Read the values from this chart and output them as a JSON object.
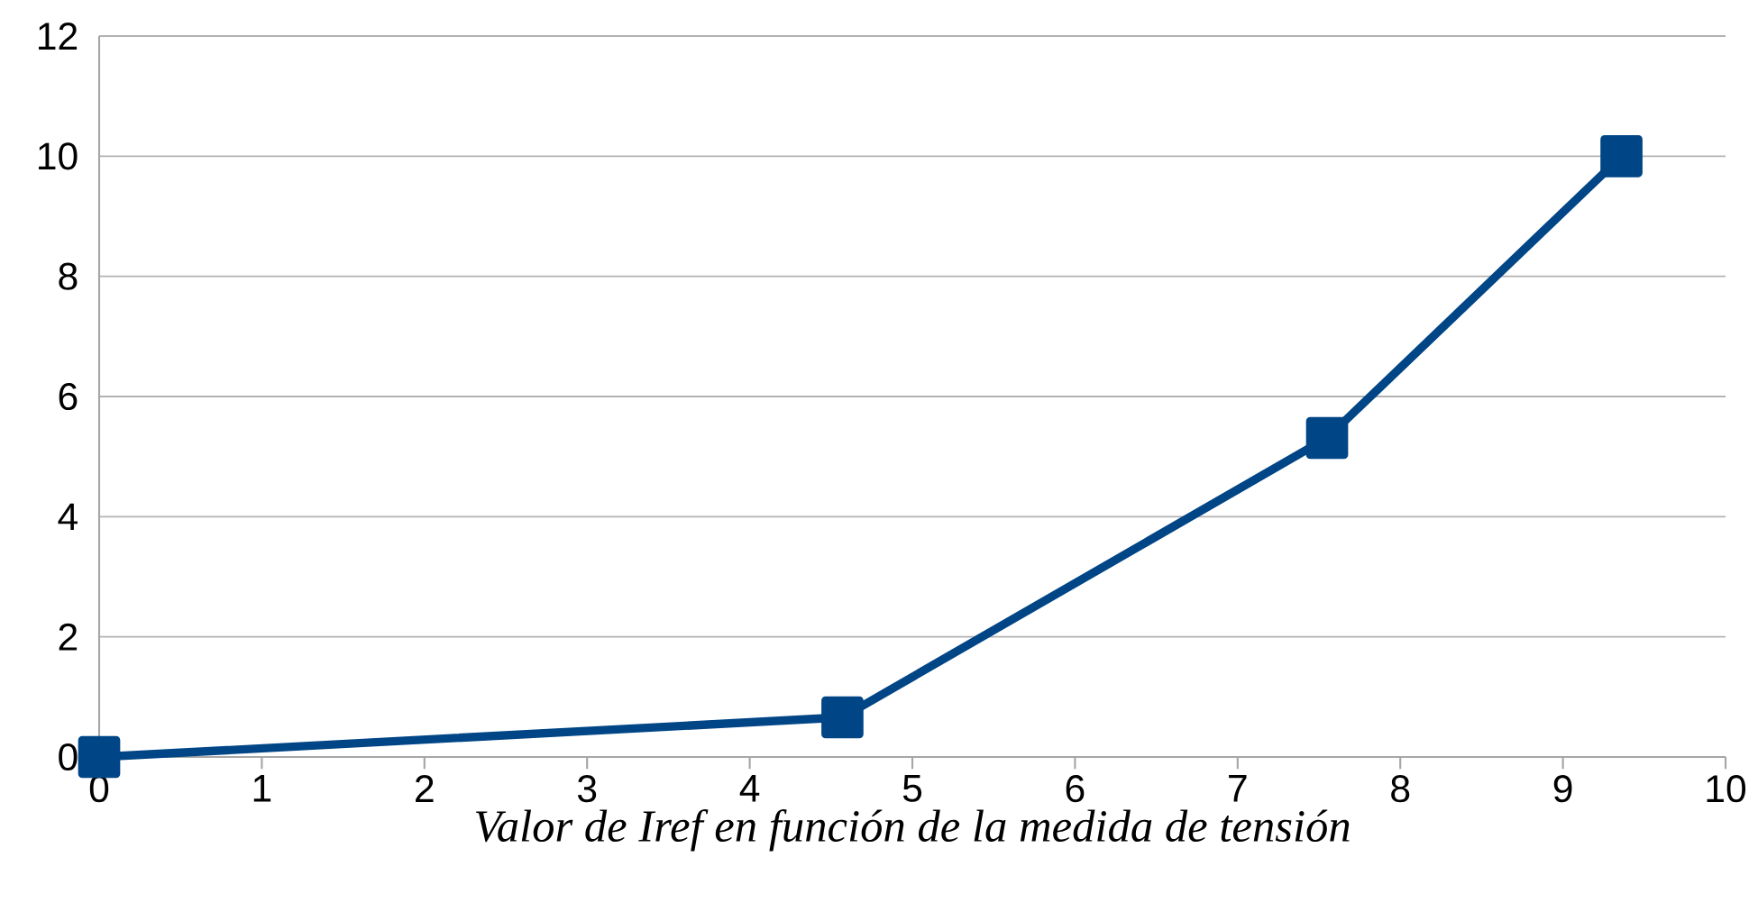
{
  "chart_data": {
    "type": "line",
    "xlabel": "Valor de Iref en función de la medida de tensión",
    "x": [
      0,
      4.57,
      7.55,
      9.36
    ],
    "series": [
      {
        "color": "#004586",
        "values": [
          0,
          0.66,
          5.31,
          10.0
        ]
      }
    ],
    "xlim": [
      0,
      10
    ],
    "xticks": [
      0,
      1,
      2,
      3,
      4,
      5,
      6,
      7,
      8,
      9,
      10
    ],
    "ylim": [
      0,
      12
    ],
    "yticks": [
      0,
      2,
      4,
      6,
      8,
      10,
      12
    ],
    "grid": "y",
    "marker": "square",
    "line_style": "solid"
  }
}
